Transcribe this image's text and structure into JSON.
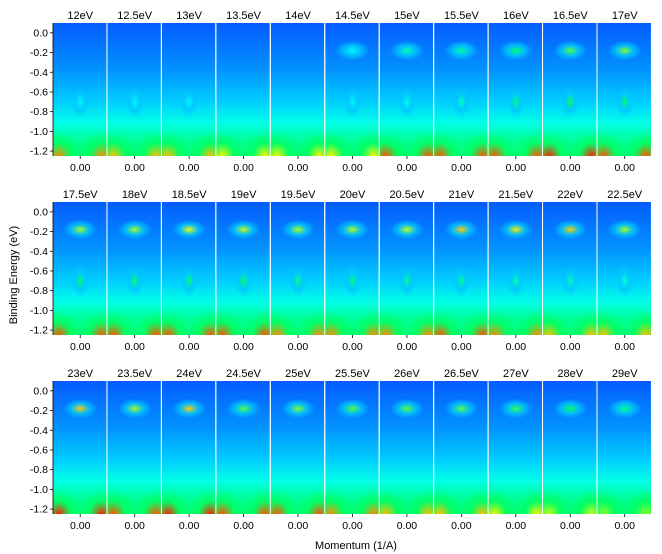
{
  "chart_data": {
    "type": "heatmap",
    "title": "",
    "xlabel": "Momentum (1/A)",
    "ylabel": "Binding Energy (eV)",
    "ylim": [
      -1.25,
      0.1
    ],
    "yticks": [
      "0.0",
      "-0.2",
      "-0.4",
      "-0.6",
      "-0.8",
      "-1.0",
      "-1.2"
    ],
    "ytick_values": [
      0.0,
      -0.2,
      -0.4,
      -0.6,
      -0.8,
      -1.0,
      -1.2
    ],
    "xtick_label": "0.00",
    "xtick_value": 0.0,
    "colormap": [
      "#0a0aff",
      "#00a0ff",
      "#00ffff",
      "#00ff60",
      "#ffff00",
      "#ff2000"
    ],
    "rows": [
      [
        "12eV",
        "12.5eV",
        "13eV",
        "13.5eV",
        "14eV",
        "14.5eV",
        "15eV",
        "15.5eV",
        "16eV",
        "16.5eV",
        "17eV"
      ],
      [
        "17.5eV",
        "18eV",
        "18.5eV",
        "19eV",
        "19.5eV",
        "20eV",
        "20.5eV",
        "21eV",
        "21.5eV",
        "22eV",
        "22.5eV"
      ],
      [
        "23eV",
        "23.5eV",
        "24eV",
        "24.5eV",
        "25eV",
        "25.5eV",
        "26eV",
        "26.5eV",
        "27eV",
        "28eV",
        "29eV"
      ]
    ],
    "intensity": {
      "top_band": [
        [
          0.05,
          0.0,
          0.0,
          0.0,
          0.05,
          0.1,
          0.3,
          0.35,
          0.45,
          0.6,
          0.65
        ],
        [
          0.7,
          0.7,
          0.8,
          0.75,
          0.72,
          0.72,
          0.75,
          0.9,
          0.85,
          0.9,
          0.7
        ],
        [
          0.9,
          0.7,
          0.9,
          0.6,
          0.65,
          0.6,
          0.6,
          0.6,
          0.55,
          0.5,
          0.4
        ]
      ],
      "mid_band": [
        [
          0.1,
          0.1,
          0.1,
          0.05,
          0.05,
          0.1,
          0.2,
          0.3,
          0.45,
          0.55,
          0.5
        ],
        [
          0.5,
          0.5,
          0.5,
          0.55,
          0.45,
          0.45,
          0.4,
          0.4,
          0.35,
          0.3,
          0.25
        ],
        [
          0.0,
          0.0,
          0.0,
          0.0,
          0.0,
          0.0,
          0.0,
          0.0,
          0.0,
          0.0,
          0.0
        ]
      ],
      "bottom_glow": [
        [
          0.9,
          0.85,
          0.85,
          0.8,
          0.8,
          0.8,
          0.95,
          0.95,
          0.95,
          1.0,
          0.95
        ],
        [
          0.95,
          0.95,
          0.95,
          0.95,
          0.9,
          0.9,
          0.9,
          0.95,
          0.9,
          0.85,
          0.85
        ],
        [
          1.0,
          0.95,
          1.0,
          0.95,
          0.95,
          0.9,
          0.85,
          0.85,
          0.8,
          0.75,
          0.7
        ]
      ]
    }
  }
}
